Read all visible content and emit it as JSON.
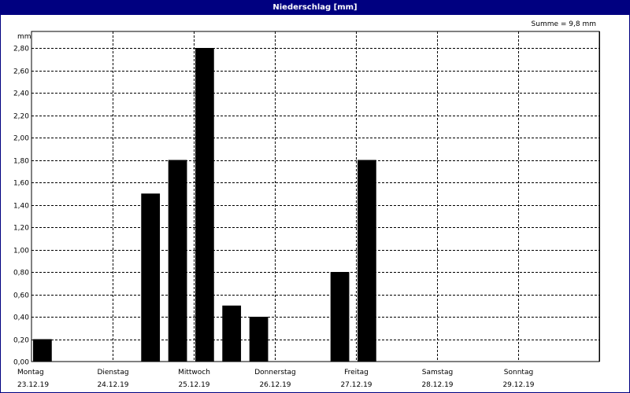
{
  "window": {
    "title": "Niederschlag [mm]",
    "sum_label": "Summe = 9,8 mm"
  },
  "colors": {
    "title_bar": "#000080",
    "bar": "#000000",
    "background": "#ffffff",
    "grid": "#000000"
  },
  "chart_data": {
    "type": "bar",
    "title": "Niederschlag [mm]",
    "ylabel": "mm",
    "xlabel": "",
    "ylim": [
      0,
      2.9
    ],
    "yticks": [
      "0,00",
      "0,20",
      "0,40",
      "0,60",
      "0,80",
      "1,00",
      "1,20",
      "1,40",
      "1,60",
      "1,80",
      "2,00",
      "2,20",
      "2,40",
      "2,60",
      "2,80"
    ],
    "ytick_values": [
      0,
      0.2,
      0.4,
      0.6,
      0.8,
      1.0,
      1.2,
      1.4,
      1.6,
      1.8,
      2.0,
      2.2,
      2.4,
      2.6,
      2.8
    ],
    "x_days": [
      {
        "day": "Montag",
        "date": "23.12.19"
      },
      {
        "day": "Dienstag",
        "date": "24.12.19"
      },
      {
        "day": "Mittwoch",
        "date": "25.12.19"
      },
      {
        "day": "Donnerstag",
        "date": "26.12.19"
      },
      {
        "day": "Freitag",
        "date": "27.12.19"
      },
      {
        "day": "Samstag",
        "date": "28.12.19"
      },
      {
        "day": "Sonntag",
        "date": "29.12.19"
      }
    ],
    "x_unit": "days since 23.12.19 00:00",
    "bars": [
      {
        "day_offset": 0.0,
        "value": 0.2
      },
      {
        "day_offset": 1.333,
        "value": 1.5
      },
      {
        "day_offset": 1.667,
        "value": 1.8
      },
      {
        "day_offset": 2.0,
        "value": 2.8
      },
      {
        "day_offset": 2.333,
        "value": 0.5
      },
      {
        "day_offset": 2.667,
        "value": 0.4
      },
      {
        "day_offset": 3.667,
        "value": 0.8
      },
      {
        "day_offset": 4.0,
        "value": 1.8
      }
    ],
    "bar_width_days": 0.25,
    "grid": true,
    "grid_style": "dashed",
    "legend": "none",
    "sum_mm": 9.8
  }
}
